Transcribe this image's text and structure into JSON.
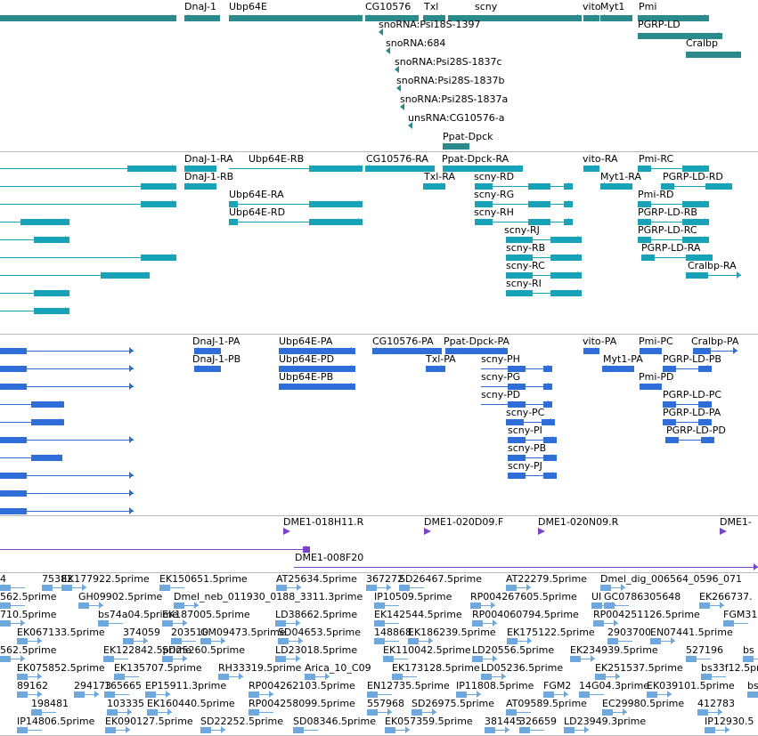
{
  "colors": {
    "gene": "#2a8a8c",
    "transcript": "#17a2b8",
    "cds": "#2f6ed8",
    "clone": "#7a44c9",
    "est": "#6fa8dc"
  },
  "tracks": {
    "genes": {
      "labels": [
        "DnaJ-1",
        "Ubp64E",
        "CG10576",
        "Txl",
        "scny",
        "vito",
        "Myt1",
        "Pmi",
        "PGRP-LD",
        "Cralbp",
        "snoRNA:Psi18S-1397",
        "snoRNA:684",
        "snoRNA:Psi28S-1837c",
        "snoRNA:Psi28S-1837b",
        "snoRNA:Psi28S-1837a",
        "unsRNA:CG10576-a",
        "Ppat-Dpck"
      ]
    },
    "transcripts": {
      "labels": [
        "DnaJ-1-RA",
        "DnaJ-1-RB",
        "Ubp64E-RB",
        "Ubp64E-RA",
        "Ubp64E-RD",
        "CG10576-RA",
        "Ppat-Dpck-RA",
        "Txl-RA",
        "scny-RD",
        "scny-RG",
        "scny-RH",
        "scny-RJ",
        "scny-RB",
        "scny-RC",
        "scny-RI",
        "vito-RA",
        "Myt1-RA",
        "Pmi-RC",
        "PGRP-LD-RD",
        "Pmi-RD",
        "PGRP-LD-RB",
        "PGRP-LD-RC",
        "PGRP-LD-RA",
        "Cralbp-RA"
      ]
    },
    "proteins": {
      "labels": [
        "DnaJ-1-PA",
        "DnaJ-1-PB",
        "Ubp64E-PA",
        "Ubp64E-PD",
        "Ubp64E-PB",
        "CG10576-PA",
        "Ppat-Dpck-PA",
        "Txl-PA",
        "scny-PH",
        "scny-PG",
        "scny-PD",
        "scny-PC",
        "scny-PI",
        "scny-PB",
        "scny-PJ",
        "vito-PA",
        "Myt1-PA",
        "Pmi-PC",
        "Cralbp-PA",
        "PGRP-LD-PB",
        "Pmi-PD",
        "PGRP-LD-PC",
        "PGRP-LD-PA",
        "PGRP-LD-PD"
      ]
    },
    "clones": {
      "labels": [
        "DME1-018H11.R",
        "DME1-020D09.F",
        "DME1-020N09.R",
        "DME1-",
        "DME1-008F20"
      ]
    },
    "ests": {
      "labels": [
        "4",
        "75382",
        "EK177922.5prime",
        "EK150651.5prime",
        "AT25634.5prime",
        "367272",
        "SD26467.5prime",
        "AT22279.5prime",
        "Dmel_dig_006564_0596_071",
        "562.5prime",
        "GH09902.5prime",
        "Dmel_neb_011930_0188_3311.3prime",
        "IP10509.5prime",
        "RP004267605.5prime",
        "UI",
        "GC0786305648",
        "EK266737.",
        "710.5prime",
        "bs74a04.5prime",
        "EK187005.5prime",
        "LD38662.5prime",
        "EK142544.5prime",
        "RP004060794.5prime",
        "RP004251126.5prime",
        "FGM31",
        "EK067133.5prime",
        "374059",
        "203510",
        "GM09473.5prime",
        "SD04653.5prime",
        "148868",
        "EK186239.5prime",
        "EK175122.5prime",
        "2903700",
        "EN07441.5prime",
        "562.5prime",
        "EK122842.5prime",
        "SD25260.5prime",
        "LD23018.5prime",
        "EK110042.5prime",
        "LD20556.5prime",
        "EK234939.5prime",
        "527196",
        "bs",
        "EK075852.5prime",
        "EK135707.5prime",
        "RH33319.5prime",
        "Arica_10_C09",
        "EK173128.5prime",
        "LD05236.5prime",
        "EK251537.5prime",
        "bs33f12.5prime",
        "89162",
        "294173",
        "165665",
        "EP15911.3prime",
        "RP004262103.5prime",
        "EN12735.5prime",
        "IP11808.5prime",
        "FGM2",
        "14G04.3prime",
        "EK039101.5prime",
        "bs",
        "198481",
        "103335",
        "EK160440.5prime",
        "RP004258099.5prime",
        "557968",
        "SD26975.5prime",
        "AT09589.5prime",
        "EC29980.5prime",
        "412783",
        "IP14806.5prime",
        "EK090127.5prime",
        "SD22252.5prime",
        "SD08346.5prime",
        "EK057359.5prime",
        "381445",
        "326659",
        "LD23949.3prime",
        "IP12930.5"
      ]
    }
  }
}
